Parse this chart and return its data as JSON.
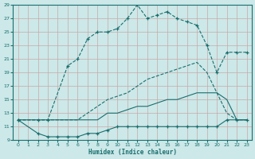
{
  "xlabel": "Humidex (Indice chaleur)",
  "bg_color": "#cce8e8",
  "grid_color": "#b0d4d4",
  "line_color": "#1a6e6e",
  "xlim": [
    0,
    23
  ],
  "ylim": [
    9,
    29
  ],
  "xticks": [
    0,
    1,
    2,
    3,
    4,
    5,
    6,
    7,
    8,
    9,
    10,
    11,
    12,
    13,
    14,
    15,
    16,
    17,
    18,
    19,
    20,
    21,
    22,
    23
  ],
  "yticks": [
    9,
    11,
    13,
    15,
    17,
    19,
    21,
    23,
    25,
    27,
    29
  ],
  "series": [
    {
      "x": [
        0,
        2,
        3,
        4,
        5,
        6,
        7,
        8,
        9,
        10,
        11,
        12,
        13,
        14,
        15,
        16,
        17,
        18,
        19,
        20,
        21,
        22,
        23
      ],
      "y": [
        12,
        10,
        9.5,
        9.5,
        9.5,
        9.5,
        10,
        10,
        10.5,
        11,
        11,
        11,
        11,
        11,
        11,
        11,
        11,
        11,
        11,
        11,
        12,
        12,
        12
      ],
      "linestyle": "-",
      "marker": true
    },
    {
      "x": [
        0,
        2,
        3,
        4,
        5,
        6,
        7,
        8,
        9,
        10,
        11,
        12,
        13,
        14,
        15,
        16,
        17,
        18,
        19,
        20,
        21,
        22,
        23
      ],
      "y": [
        12,
        12,
        12,
        12,
        12,
        12,
        12,
        12,
        13,
        13,
        13.5,
        14,
        14,
        14.5,
        15,
        15,
        15.5,
        16,
        16,
        16,
        15,
        12,
        12
      ],
      "linestyle": "-",
      "marker": false
    },
    {
      "x": [
        0,
        2,
        3,
        4,
        5,
        6,
        7,
        8,
        9,
        10,
        11,
        12,
        13,
        14,
        15,
        16,
        17,
        18,
        19,
        20,
        21,
        22,
        23
      ],
      "y": [
        12,
        12,
        12,
        12,
        12,
        12,
        13,
        14,
        15,
        15.5,
        16,
        17,
        18,
        18.5,
        19,
        19.5,
        20,
        20.5,
        19,
        16,
        13,
        12,
        12
      ],
      "linestyle": "--",
      "marker": false
    },
    {
      "x": [
        0,
        2,
        3,
        5,
        6,
        7,
        8,
        9,
        10,
        11,
        12,
        13,
        14,
        15,
        16,
        17,
        18,
        19,
        20,
        21,
        22,
        23
      ],
      "y": [
        12,
        12,
        12,
        20,
        21,
        24,
        25,
        25,
        25.5,
        27,
        29,
        27,
        27.5,
        28,
        27,
        26.5,
        26,
        23,
        19,
        22,
        22,
        22
      ],
      "linestyle": "--",
      "marker": true
    }
  ]
}
